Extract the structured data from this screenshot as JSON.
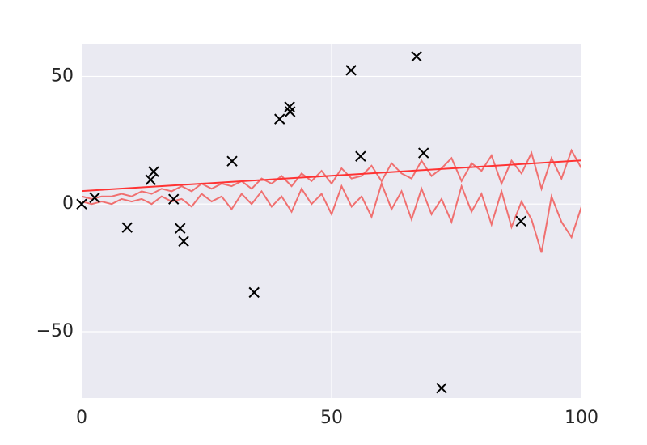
{
  "chart_data": {
    "type": "scatter",
    "xlim": [
      0,
      100
    ],
    "ylim": [
      -76,
      62.5
    ],
    "xticks": [
      0,
      50,
      100
    ],
    "yticks": [
      {
        "value": -50,
        "label": "−50"
      },
      0,
      50
    ],
    "grid": true,
    "series": [
      {
        "type": "line",
        "color": "#f07070",
        "x": [
          0,
          2,
          4,
          6,
          8,
          10,
          12,
          14,
          16,
          18,
          20,
          22,
          24,
          26,
          28,
          30,
          32,
          34,
          36,
          38,
          40,
          42,
          44,
          46,
          48,
          50,
          52,
          54,
          56,
          58,
          60,
          62,
          64,
          66,
          68,
          70,
          72,
          74,
          76,
          78,
          80,
          82,
          84,
          86,
          88,
          90,
          92,
          94,
          96,
          98,
          100
        ],
        "values": [
          3,
          2,
          3,
          3,
          4,
          3,
          5,
          4,
          6,
          5,
          7,
          5,
          8,
          6,
          8,
          7,
          9,
          6,
          10,
          8,
          11,
          7,
          12,
          9,
          13,
          8,
          14,
          10,
          11,
          15,
          9,
          16,
          12,
          10,
          17,
          11,
          14,
          18,
          9,
          16,
          13,
          19,
          8,
          17,
          12,
          20,
          6,
          18,
          10,
          21,
          14
        ]
      },
      {
        "type": "line",
        "color": "#f07070",
        "x": [
          0,
          2,
          4,
          6,
          8,
          10,
          12,
          14,
          16,
          18,
          20,
          22,
          24,
          26,
          28,
          30,
          32,
          34,
          36,
          38,
          40,
          42,
          44,
          46,
          48,
          50,
          52,
          54,
          56,
          58,
          60,
          62,
          64,
          66,
          68,
          70,
          72,
          74,
          76,
          78,
          80,
          82,
          84,
          86,
          88,
          90,
          92,
          94,
          96,
          98,
          100
        ],
        "values": [
          1,
          0,
          1,
          0,
          2,
          1,
          2,
          0,
          3,
          1,
          2,
          -1,
          4,
          1,
          3,
          -2,
          4,
          0,
          5,
          -1,
          3,
          -3,
          6,
          0,
          4,
          -4,
          7,
          -1,
          3,
          -5,
          8,
          -2,
          5,
          -6,
          6,
          -4,
          2,
          -7,
          7,
          -3,
          4,
          -8,
          5,
          -9,
          1,
          -6,
          -19,
          3,
          -7,
          -13,
          -1
        ]
      },
      {
        "type": "line",
        "color": "#ff3333",
        "x": [
          0,
          100
        ],
        "values": [
          5.1,
          17.1
        ]
      },
      {
        "type": "scatter",
        "color": "#000000",
        "x": [
          0,
          2.6,
          9.1,
          13.8,
          14.4,
          18.4,
          19.7,
          20.4,
          30.1,
          34.5,
          39.6,
          41.6,
          41.7,
          53.9,
          55.8,
          67.0,
          68.4,
          72.0,
          87.9
        ],
        "values": [
          0,
          2.5,
          -9.2,
          9.5,
          12.7,
          1.9,
          -9.5,
          -14.6,
          16.8,
          -34.6,
          33.3,
          38.1,
          36.2,
          52.4,
          18.7,
          57.8,
          20.0,
          -72.1,
          -6.7
        ]
      }
    ]
  }
}
